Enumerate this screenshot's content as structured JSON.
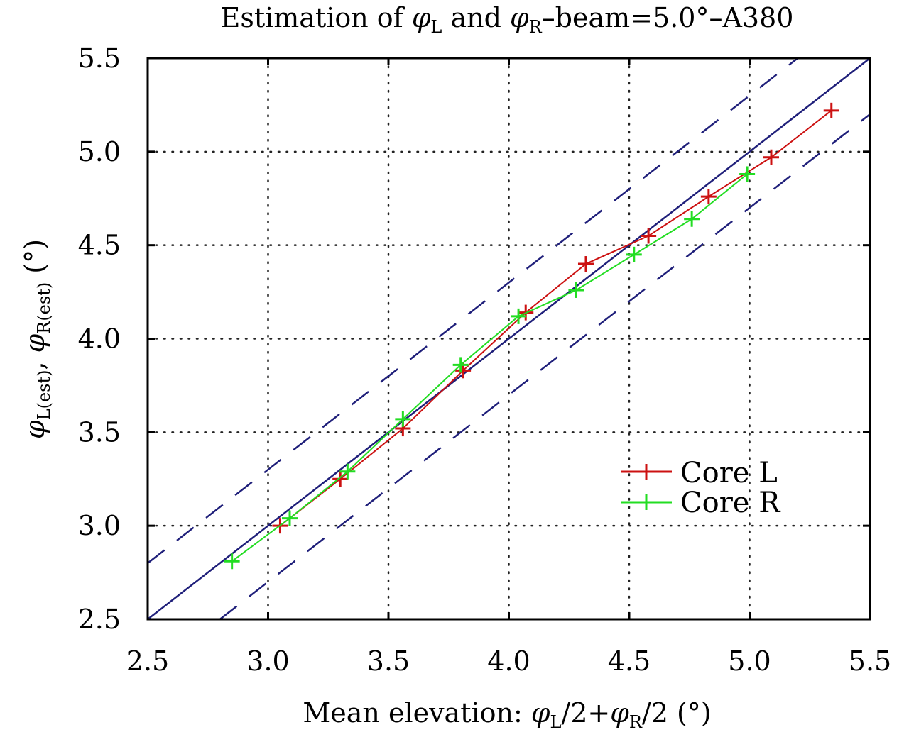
{
  "chart_data": {
    "type": "line",
    "title": {
      "prefix": "Estimation of ",
      "sym1": "φ",
      "sub1": "L",
      "middle": " and ",
      "sym2": "φ",
      "sub2": "R",
      "suffix": "–beam=5.0°–A380"
    },
    "xlabel": {
      "prefix": "Mean elevation: ",
      "sym1": "φ",
      "sub1": "L",
      "mid": "/2+",
      "sym2": "φ",
      "sub2": "R",
      "suffix": "/2 (°)"
    },
    "ylabel": {
      "sym1": "φ",
      "sub1": "L(est)",
      "sep": ", ",
      "sym2": "φ",
      "sub2": "R(est)",
      "suffix": " (°)"
    },
    "xlim": [
      2.5,
      5.5
    ],
    "ylim": [
      2.5,
      5.5
    ],
    "xticks": [
      "2.5",
      "3.0",
      "3.5",
      "4.0",
      "4.5",
      "5.0",
      "5.5"
    ],
    "yticks": [
      "2.5",
      "3.0",
      "3.5",
      "4.0",
      "4.5",
      "5.0",
      "5.5"
    ],
    "grid": true,
    "legend_position": "lower-right",
    "reference_lines": [
      {
        "name": "identity",
        "slope": 1,
        "offset": 0.0,
        "style": "solid",
        "color": "#1f1f7a"
      },
      {
        "name": "upper-bound",
        "slope": 1,
        "offset": 0.3,
        "style": "dashed",
        "color": "#1f1f7a"
      },
      {
        "name": "lower-bound",
        "slope": 1,
        "offset": -0.3,
        "style": "dashed",
        "color": "#1f1f7a"
      }
    ],
    "series": [
      {
        "name": "Core L",
        "color": "#cc1111",
        "marker": "+",
        "x": [
          3.05,
          3.3,
          3.56,
          3.81,
          4.07,
          4.32,
          4.58,
          4.83,
          5.09,
          5.34
        ],
        "y": [
          3.0,
          3.25,
          3.52,
          3.83,
          4.14,
          4.4,
          4.55,
          4.76,
          4.97,
          5.22
        ]
      },
      {
        "name": "Core R",
        "color": "#22dd22",
        "marker": "+",
        "x": [
          2.85,
          3.09,
          3.33,
          3.56,
          3.8,
          4.04,
          4.28,
          4.52,
          4.76,
          4.99
        ],
        "y": [
          2.81,
          3.04,
          3.29,
          3.57,
          3.86,
          4.12,
          4.26,
          4.45,
          4.64,
          4.88
        ]
      }
    ]
  }
}
